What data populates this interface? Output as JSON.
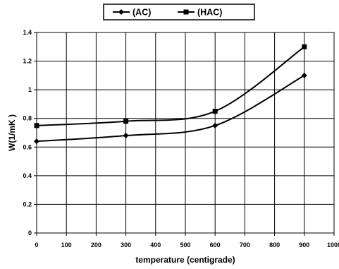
{
  "chart_data": {
    "type": "line",
    "title": "",
    "xlabel": "temperature (centigrade)",
    "ylabel": "W(1/mK )",
    "xlim": [
      0,
      1000
    ],
    "ylim": [
      0,
      1.4
    ],
    "x_ticks": [
      "0",
      "100",
      "200",
      "300",
      "400",
      "500",
      "600",
      "700",
      "800",
      "900",
      "1000"
    ],
    "y_ticks": [
      "0",
      "0.2",
      "0.4",
      "0.6",
      "0.8",
      "1",
      "1.2",
      "1.4"
    ],
    "grid": true,
    "legend_position": "top",
    "series": [
      {
        "name": "(AC)",
        "marker": "diamond",
        "x": [
          0,
          300,
          600,
          900
        ],
        "y": [
          0.64,
          0.68,
          0.75,
          1.1
        ]
      },
      {
        "name": "(HAC)",
        "marker": "square",
        "x": [
          0,
          300,
          600,
          900
        ],
        "y": [
          0.75,
          0.78,
          0.85,
          1.3
        ]
      }
    ]
  }
}
